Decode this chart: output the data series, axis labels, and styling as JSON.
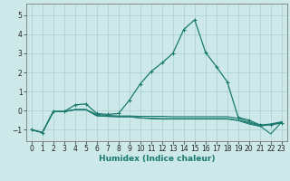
{
  "xlabel": "Humidex (Indice chaleur)",
  "bg_color": "#cce8e8",
  "grid_color": "#aacfcf",
  "line_color": "#1a7a6e",
  "xlim": [
    -0.5,
    23.5
  ],
  "ylim": [
    -1.6,
    5.6
  ],
  "xticks": [
    0,
    1,
    2,
    3,
    4,
    5,
    6,
    7,
    8,
    9,
    10,
    11,
    12,
    13,
    14,
    15,
    16,
    17,
    18,
    19,
    20,
    21,
    22,
    23
  ],
  "yticks": [
    -1,
    0,
    1,
    2,
    3,
    4,
    5
  ],
  "lines": [
    {
      "x": [
        0,
        1,
        2,
        3,
        4,
        5,
        6,
        7,
        8,
        9,
        10,
        11,
        12,
        13,
        14,
        15,
        16,
        17,
        18,
        19,
        20,
        21,
        22,
        23
      ],
      "y": [
        -1.0,
        -1.15,
        -0.05,
        -0.05,
        0.3,
        0.35,
        -0.15,
        -0.2,
        -0.15,
        0.55,
        1.4,
        2.05,
        2.5,
        3.0,
        4.25,
        4.75,
        3.05,
        2.3,
        1.5,
        -0.35,
        -0.5,
        -0.75,
        -0.75,
        -0.65
      ],
      "marker": true
    },
    {
      "x": [
        0,
        1,
        2,
        3,
        4,
        5,
        6,
        7,
        8,
        9,
        10,
        11,
        12,
        13,
        14,
        15,
        16,
        17,
        18,
        19,
        20,
        21,
        22,
        23
      ],
      "y": [
        -1.0,
        -1.15,
        -0.05,
        -0.05,
        0.05,
        0.05,
        -0.2,
        -0.25,
        -0.28,
        -0.28,
        -0.3,
        -0.3,
        -0.3,
        -0.32,
        -0.32,
        -0.32,
        -0.32,
        -0.32,
        -0.32,
        -0.4,
        -0.6,
        -0.75,
        -0.7,
        -0.58
      ],
      "marker": false
    },
    {
      "x": [
        0,
        1,
        2,
        3,
        4,
        5,
        6,
        7,
        8,
        9,
        10,
        11,
        12,
        13,
        14,
        15,
        16,
        17,
        18,
        19,
        20,
        21,
        22,
        23
      ],
      "y": [
        -1.0,
        -1.15,
        -0.05,
        -0.05,
        0.05,
        0.05,
        -0.25,
        -0.3,
        -0.32,
        -0.32,
        -0.38,
        -0.4,
        -0.42,
        -0.42,
        -0.42,
        -0.42,
        -0.42,
        -0.42,
        -0.42,
        -0.5,
        -0.65,
        -0.8,
        -1.22,
        -0.6
      ],
      "marker": false
    },
    {
      "x": [
        0,
        1,
        2,
        3,
        4,
        5,
        6,
        7,
        8,
        9,
        10,
        11,
        12,
        13,
        14,
        15,
        16,
        17,
        18,
        19,
        20,
        21,
        22,
        23
      ],
      "y": [
        -1.0,
        -1.15,
        -0.05,
        -0.05,
        0.05,
        0.05,
        -0.28,
        -0.3,
        -0.32,
        -0.32,
        -0.38,
        -0.42,
        -0.44,
        -0.44,
        -0.44,
        -0.44,
        -0.44,
        -0.44,
        -0.44,
        -0.52,
        -0.7,
        -0.82,
        -0.72,
        -0.62
      ],
      "marker": false
    }
  ]
}
